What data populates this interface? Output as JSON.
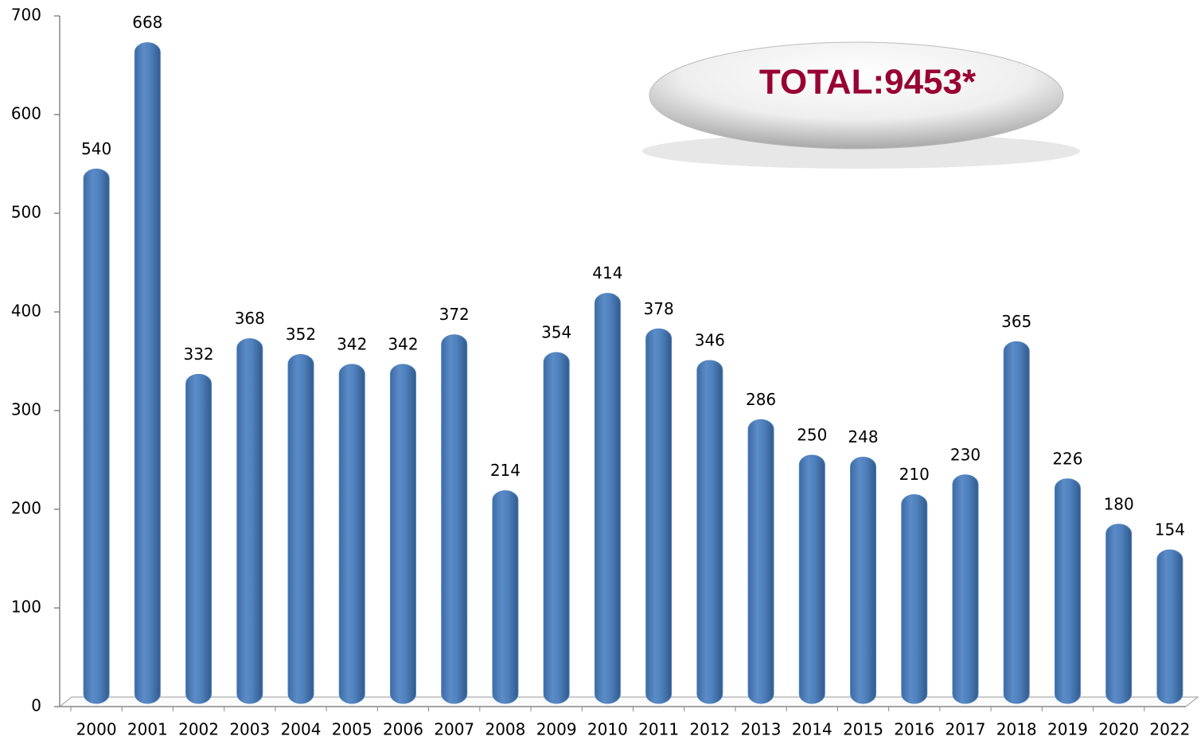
{
  "chart_data": {
    "type": "bar",
    "annotation": "TOTAL:9453*",
    "categories": [
      "2000",
      "2001",
      "2002",
      "2003",
      "2004",
      "2005",
      "2006",
      "2007",
      "2008",
      "2009",
      "2010",
      "2011",
      "2012",
      "2013",
      "2014",
      "2015",
      "2016",
      "2017",
      "2018",
      "2019",
      "2020",
      "2022"
    ],
    "values": [
      540,
      668,
      332,
      368,
      352,
      342,
      342,
      372,
      214,
      354,
      414,
      378,
      346,
      286,
      250,
      248,
      210,
      230,
      365,
      226,
      180,
      154
    ],
    "color": "#4f81bd",
    "ylim": [
      0,
      700
    ],
    "yticks": [
      0,
      100,
      200,
      300,
      400,
      500,
      600,
      700
    ],
    "grid": false
  }
}
